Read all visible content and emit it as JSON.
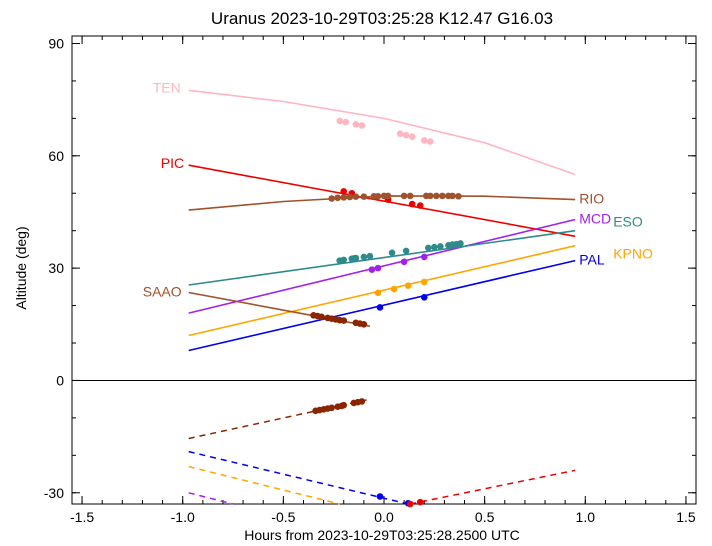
{
  "chart_data": {
    "type": "line",
    "title": "Uranus 2023-10-29T03:25:28  K12.47  G16.03",
    "xlabel": "Hours from 2023-10-29T03:25:28.2500 UTC",
    "ylabel": "Altitude (deg)",
    "xlim": [
      -1.55,
      1.55
    ],
    "ylim": [
      -33,
      92
    ],
    "xticks": [
      -1.5,
      -1.0,
      -0.5,
      0.0,
      0.5,
      1.0,
      1.5
    ],
    "xtick_labels": [
      "-1.5",
      "-1.0",
      "-0.5",
      "0.0",
      "0.5",
      "1.0",
      "1.5"
    ],
    "yticks": [
      -30,
      0,
      30,
      60,
      90
    ],
    "ytick_labels": [
      "-30",
      "0",
      "30",
      "60",
      "90"
    ],
    "grid": false,
    "series": [
      {
        "name": "TEN",
        "color": "#ffb6c1",
        "label_at": "start",
        "line": [
          [
            -0.97,
            77.5
          ],
          [
            -0.5,
            74.5
          ],
          [
            0.0,
            70.0
          ],
          [
            0.5,
            63.5
          ],
          [
            0.95,
            55.0
          ]
        ],
        "points": [
          [
            -0.22,
            69.3
          ],
          [
            -0.19,
            69.0
          ],
          [
            -0.14,
            68.4
          ],
          [
            -0.11,
            68.1
          ],
          [
            0.08,
            65.9
          ],
          [
            0.11,
            65.5
          ],
          [
            0.14,
            65.1
          ],
          [
            0.2,
            64.1
          ],
          [
            0.23,
            63.8
          ]
        ]
      },
      {
        "name": "PIC",
        "color": "#ee0000",
        "label_at": "start",
        "line": [
          [
            -0.97,
            57.5
          ],
          [
            0.95,
            38.5
          ]
        ],
        "points": [
          [
            -0.2,
            50.5
          ],
          [
            -0.16,
            50.0
          ],
          [
            0.02,
            48.3
          ],
          [
            0.14,
            47.1
          ],
          [
            0.18,
            46.7
          ]
        ]
      },
      {
        "name": "RIO",
        "color": "#a0522d",
        "label_at": "end",
        "line": [
          [
            -0.97,
            45.5
          ],
          [
            -0.5,
            47.8
          ],
          [
            0.0,
            49.3
          ],
          [
            0.5,
            49.2
          ],
          [
            0.95,
            48.3
          ]
        ],
        "points": [
          [
            -0.26,
            48.6
          ],
          [
            -0.23,
            48.8
          ],
          [
            -0.2,
            48.9
          ],
          [
            -0.17,
            49.0
          ],
          [
            -0.14,
            49.1
          ],
          [
            -0.1,
            49.1
          ],
          [
            -0.05,
            49.2
          ],
          [
            -0.03,
            49.2
          ],
          [
            0.0,
            49.3
          ],
          [
            0.02,
            49.3
          ],
          [
            0.1,
            49.3
          ],
          [
            0.13,
            49.3
          ],
          [
            0.21,
            49.3
          ],
          [
            0.23,
            49.3
          ],
          [
            0.26,
            49.3
          ],
          [
            0.29,
            49.3
          ],
          [
            0.32,
            49.3
          ],
          [
            0.34,
            49.3
          ],
          [
            0.37,
            49.2
          ]
        ]
      },
      {
        "name": "MCD",
        "color": "#a020f0",
        "label_at": "end",
        "line": [
          [
            -0.97,
            18.0
          ],
          [
            0.95,
            43.0
          ]
        ],
        "points": [
          [
            -0.06,
            29.6
          ],
          [
            -0.03,
            30.0
          ],
          [
            0.1,
            31.7
          ],
          [
            0.2,
            33.0
          ]
        ],
        "dashed": [
          [
            -0.97,
            -30.0
          ],
          [
            -0.75,
            -33.0
          ]
        ]
      },
      {
        "name": "ESO",
        "color": "#2e8b8b",
        "label_at": "end",
        "line": [
          [
            -0.97,
            25.5
          ],
          [
            0.95,
            40.0
          ]
        ],
        "points": [
          [
            -0.22,
            32.0
          ],
          [
            -0.2,
            32.2
          ],
          [
            -0.16,
            32.5
          ],
          [
            -0.15,
            32.6
          ],
          [
            -0.14,
            32.7
          ],
          [
            -0.1,
            33.0
          ],
          [
            -0.07,
            33.2
          ],
          [
            0.04,
            34.1
          ],
          [
            0.11,
            34.6
          ],
          [
            0.22,
            35.4
          ],
          [
            0.25,
            35.6
          ],
          [
            0.28,
            35.8
          ],
          [
            0.32,
            36.1
          ],
          [
            0.34,
            36.3
          ],
          [
            0.36,
            36.4
          ],
          [
            0.38,
            36.6
          ]
        ]
      },
      {
        "name": "KPNO",
        "color": "#ffa500",
        "label_at": "end",
        "line": [
          [
            -0.97,
            12.0
          ],
          [
            0.95,
            36.0
          ]
        ],
        "points": [
          [
            -0.03,
            23.4
          ],
          [
            0.05,
            24.4
          ],
          [
            0.12,
            25.3
          ],
          [
            0.2,
            26.3
          ]
        ],
        "dashed": [
          [
            -0.97,
            -23.0
          ],
          [
            -0.22,
            -33.0
          ]
        ]
      },
      {
        "name": "PAL",
        "color": "#0000ee",
        "label_at": "end",
        "line": [
          [
            -0.97,
            8.0
          ],
          [
            0.95,
            32.0
          ]
        ],
        "points": [
          [
            -0.02,
            19.5
          ],
          [
            0.2,
            22.2
          ]
        ],
        "dashed": [
          [
            -0.97,
            -19.0
          ],
          [
            0.12,
            -33.0
          ]
        ],
        "dashed_points": [
          [
            -0.02,
            -31.0
          ],
          [
            0.12,
            -32.8
          ]
        ]
      },
      {
        "name": "SAAO",
        "color": "#a0522d",
        "dark": "#8b2500",
        "label_at": "start",
        "line": [
          [
            -0.97,
            23.5
          ],
          [
            -0.07,
            14.5
          ]
        ],
        "points": [
          [
            -0.35,
            17.4
          ],
          [
            -0.33,
            17.2
          ],
          [
            -0.31,
            17.0
          ],
          [
            -0.28,
            16.7
          ],
          [
            -0.26,
            16.5
          ],
          [
            -0.24,
            16.3
          ],
          [
            -0.22,
            16.1
          ],
          [
            -0.2,
            16.0
          ],
          [
            -0.14,
            15.4
          ],
          [
            -0.12,
            15.2
          ],
          [
            -0.1,
            15.0
          ]
        ],
        "dashed": [
          [
            -0.97,
            -15.5
          ],
          [
            -0.07,
            -5.0
          ]
        ],
        "dashed_points": [
          [
            -0.34,
            -8.1
          ],
          [
            -0.32,
            -7.9
          ],
          [
            -0.3,
            -7.7
          ],
          [
            -0.28,
            -7.5
          ],
          [
            -0.26,
            -7.3
          ],
          [
            -0.23,
            -7.0
          ],
          [
            -0.21,
            -6.8
          ],
          [
            -0.2,
            -6.6
          ],
          [
            -0.15,
            -6.0
          ],
          [
            -0.13,
            -5.8
          ],
          [
            -0.11,
            -5.6
          ]
        ]
      },
      {
        "name": "PIC_below",
        "color": "#ee0000",
        "dashed": [
          [
            0.13,
            -33.0
          ],
          [
            0.95,
            -24.0
          ]
        ],
        "dashed_points": [
          [
            0.13,
            -33.0
          ],
          [
            0.18,
            -32.5
          ]
        ]
      }
    ],
    "label_names": [
      "TEN",
      "PIC",
      "RIO",
      "MCD",
      "ESO",
      "KPNO",
      "PAL",
      "SAAO"
    ],
    "zero_line": true
  }
}
